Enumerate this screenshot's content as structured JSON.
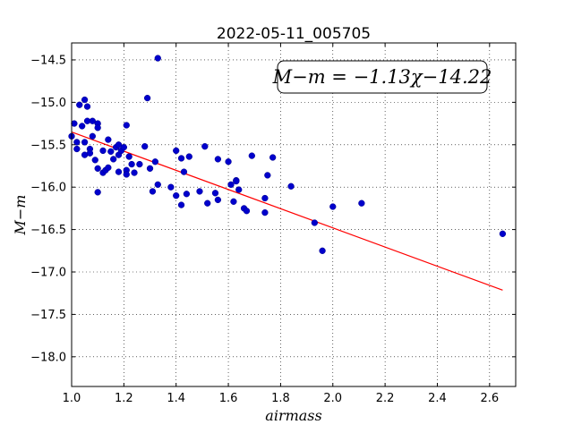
{
  "chart_data": {
    "type": "scatter",
    "title": "2022-05-11_005705",
    "xlabel": "airmass",
    "ylabel": "M−m",
    "xlim": [
      1.0,
      2.7
    ],
    "ylim": [
      -18.35,
      -14.3
    ],
    "y_inverted": true,
    "grid": true,
    "xticks": [
      1.0,
      1.2,
      1.4,
      1.6,
      1.8,
      2.0,
      2.2,
      2.4,
      2.6
    ],
    "xtick_labels": [
      "1.0",
      "1.2",
      "1.4",
      "1.6",
      "1.8",
      "2.0",
      "2.2",
      "2.4",
      "2.6"
    ],
    "yticks": [
      -14.5,
      -15.0,
      -15.5,
      -16.0,
      -16.5,
      -17.0,
      -17.5,
      -18.0
    ],
    "ytick_labels": [
      "−14.5",
      "−15.0",
      "−15.5",
      "−16.0",
      "−16.5",
      "−17.0",
      "−17.5",
      "−18.0"
    ],
    "annotation": "M−m = −1.13χ−14.22",
    "fit": {
      "slope": -1.13,
      "intercept": -14.22,
      "x_range": [
        1.0,
        2.65
      ],
      "color": "#ff0000"
    },
    "point_color": "#0000cc",
    "series": [
      {
        "points": [
          [
            1.01,
            -15.25
          ],
          [
            1.02,
            -15.47
          ],
          [
            1.02,
            -15.55
          ],
          [
            1.03,
            -15.03
          ],
          [
            1.04,
            -15.28
          ],
          [
            1.05,
            -14.97
          ],
          [
            1.05,
            -15.47
          ],
          [
            1.05,
            -15.62
          ],
          [
            1.06,
            -15.05
          ],
          [
            1.06,
            -15.22
          ],
          [
            1.07,
            -15.55
          ],
          [
            1.07,
            -15.6
          ],
          [
            1.08,
            -15.22
          ],
          [
            1.08,
            -15.4
          ],
          [
            1.09,
            -15.68
          ],
          [
            1.1,
            -15.25
          ],
          [
            1.1,
            -15.3
          ],
          [
            1.1,
            -16.06
          ],
          [
            1.1,
            -15.78
          ],
          [
            1.12,
            -15.83
          ],
          [
            1.12,
            -15.57
          ],
          [
            1.13,
            -15.8
          ],
          [
            1.14,
            -15.44
          ],
          [
            1.14,
            -15.77
          ],
          [
            1.15,
            -15.58
          ],
          [
            1.16,
            -15.67
          ],
          [
            1.17,
            -15.53
          ],
          [
            1.18,
            -15.5
          ],
          [
            1.18,
            -15.62
          ],
          [
            1.18,
            -15.82
          ],
          [
            1.19,
            -15.57
          ],
          [
            1.2,
            -15.53
          ],
          [
            1.21,
            -15.27
          ],
          [
            1.21,
            -15.8
          ],
          [
            1.21,
            -15.85
          ],
          [
            1.22,
            -15.64
          ],
          [
            1.23,
            -15.73
          ],
          [
            1.24,
            -15.83
          ],
          [
            1.26,
            -15.73
          ],
          [
            1.28,
            -15.52
          ],
          [
            1.29,
            -14.95
          ],
          [
            1.3,
            -15.78
          ],
          [
            1.31,
            -16.05
          ],
          [
            1.32,
            -15.7
          ],
          [
            1.33,
            -15.97
          ],
          [
            1.33,
            -14.48
          ],
          [
            1.38,
            -16.0
          ],
          [
            1.4,
            -15.57
          ],
          [
            1.4,
            -16.1
          ],
          [
            1.42,
            -15.66
          ],
          [
            1.42,
            -16.21
          ],
          [
            1.43,
            -15.82
          ],
          [
            1.44,
            -16.08
          ],
          [
            1.45,
            -15.64
          ],
          [
            1.49,
            -16.05
          ],
          [
            1.51,
            -15.52
          ],
          [
            1.52,
            -16.19
          ],
          [
            1.55,
            -16.07
          ],
          [
            1.56,
            -15.67
          ],
          [
            1.56,
            -16.15
          ],
          [
            1.6,
            -15.7
          ],
          [
            1.61,
            -15.97
          ],
          [
            1.62,
            -16.17
          ],
          [
            1.63,
            -15.92
          ],
          [
            1.63,
            -15.93
          ],
          [
            1.64,
            -16.03
          ],
          [
            1.66,
            -16.25
          ],
          [
            1.67,
            -16.28
          ],
          [
            1.69,
            -15.63
          ],
          [
            1.74,
            -16.13
          ],
          [
            1.74,
            -16.3
          ],
          [
            1.75,
            -15.86
          ],
          [
            1.77,
            -15.65
          ],
          [
            1.84,
            -15.99
          ],
          [
            1.93,
            -16.42
          ],
          [
            1.96,
            -16.75
          ],
          [
            2.0,
            -16.23
          ],
          [
            2.11,
            -16.19
          ],
          [
            2.65,
            -16.55
          ],
          [
            1.0,
            -15.4
          ]
        ]
      }
    ]
  }
}
